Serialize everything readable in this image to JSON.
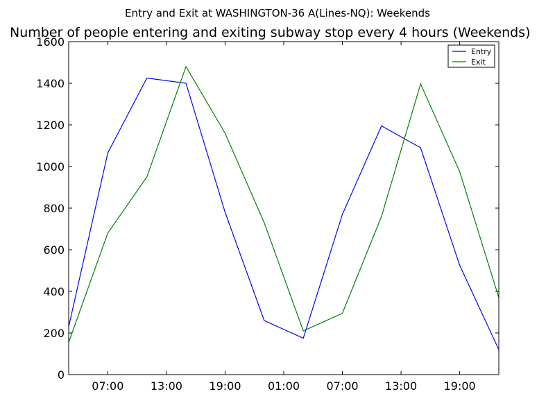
{
  "suptitle": "Entry and Exit at WASHINGTON-36 A(Lines-NQ): Weekends",
  "chart_data": {
    "type": "line",
    "title": "Number of people entering and exiting subway stop every 4 hours (Weekends)",
    "xlabel": "",
    "ylabel": "",
    "x_hours": [
      3,
      7,
      11,
      15,
      19,
      23,
      27,
      31,
      35,
      39,
      43,
      47
    ],
    "xlim": [
      3,
      47
    ],
    "ylim": [
      0,
      1600
    ],
    "y_ticks": [
      0,
      200,
      400,
      600,
      800,
      1000,
      1200,
      1400,
      1600
    ],
    "x_ticks": [
      {
        "value": 7,
        "label": "07:00"
      },
      {
        "value": 13,
        "label": "13:00"
      },
      {
        "value": 19,
        "label": "19:00"
      },
      {
        "value": 25,
        "label": "01:00"
      },
      {
        "value": 31,
        "label": "07:00"
      },
      {
        "value": 37,
        "label": "13:00"
      },
      {
        "value": 43,
        "label": "19:00"
      }
    ],
    "grid": false,
    "legend_position": "top-right",
    "series": [
      {
        "name": "Entry",
        "color": "#0000ff",
        "values": [
          230,
          1065,
          1425,
          1400,
          780,
          260,
          175,
          770,
          1195,
          1090,
          525,
          120
        ]
      },
      {
        "name": "Exit",
        "color": "#008000",
        "values": [
          155,
          680,
          950,
          1480,
          1160,
          730,
          210,
          295,
          760,
          1397,
          975,
          370
        ]
      }
    ]
  }
}
